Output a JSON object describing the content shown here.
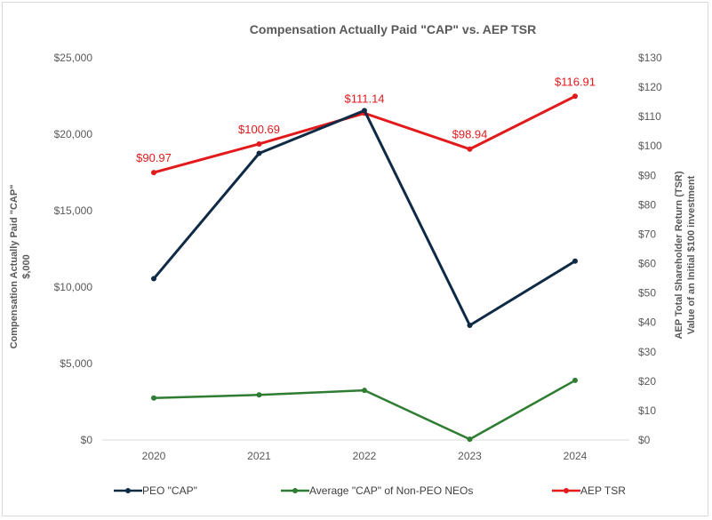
{
  "chart_data": {
    "type": "line",
    "title": "Compensation Actually Paid \"CAP\" vs. AEP TSR",
    "categories": [
      "2020",
      "2021",
      "2022",
      "2023",
      "2024"
    ],
    "y_left": {
      "label_line1": "Compensation Actually Paid \"CAP\"",
      "label_line2": "$,000",
      "range": [
        0,
        25000
      ],
      "ticks": [
        0,
        5000,
        10000,
        15000,
        20000,
        25000
      ],
      "tick_labels": [
        "$0",
        "$5,000",
        "$10,000",
        "$15,000",
        "$20,000",
        "$25,000"
      ]
    },
    "y_right": {
      "label_line1": "AEP Total Shareholder Return (TSR)",
      "label_line2": "Value of an Initial $100 investment",
      "range": [
        0,
        130
      ],
      "ticks": [
        0,
        10,
        20,
        30,
        40,
        50,
        60,
        70,
        80,
        90,
        100,
        110,
        120,
        130
      ],
      "tick_labels": [
        "$0",
        "$10",
        "$20",
        "$30",
        "$40",
        "$50",
        "$60",
        "$70",
        "$80",
        "$90",
        "$100",
        "$110",
        "$120",
        "$130"
      ]
    },
    "series": [
      {
        "name": "PEO \"CAP\"",
        "axis": "left",
        "color": "#0f2a45",
        "values": [
          10550,
          18750,
          21550,
          7500,
          11700
        ]
      },
      {
        "name": "Average \"CAP\" of Non-PEO NEOs",
        "axis": "left",
        "color": "#2e7d32",
        "values": [
          2750,
          2950,
          3250,
          50,
          3900
        ]
      },
      {
        "name": "AEP TSR",
        "axis": "right",
        "color": "#e31a1c",
        "values": [
          90.97,
          100.69,
          111.14,
          98.94,
          116.91
        ],
        "data_labels": [
          "$90.97",
          "$100.69",
          "$111.14",
          "$98.94",
          "$116.91"
        ]
      }
    ],
    "legend_position": "bottom",
    "grid": false
  }
}
